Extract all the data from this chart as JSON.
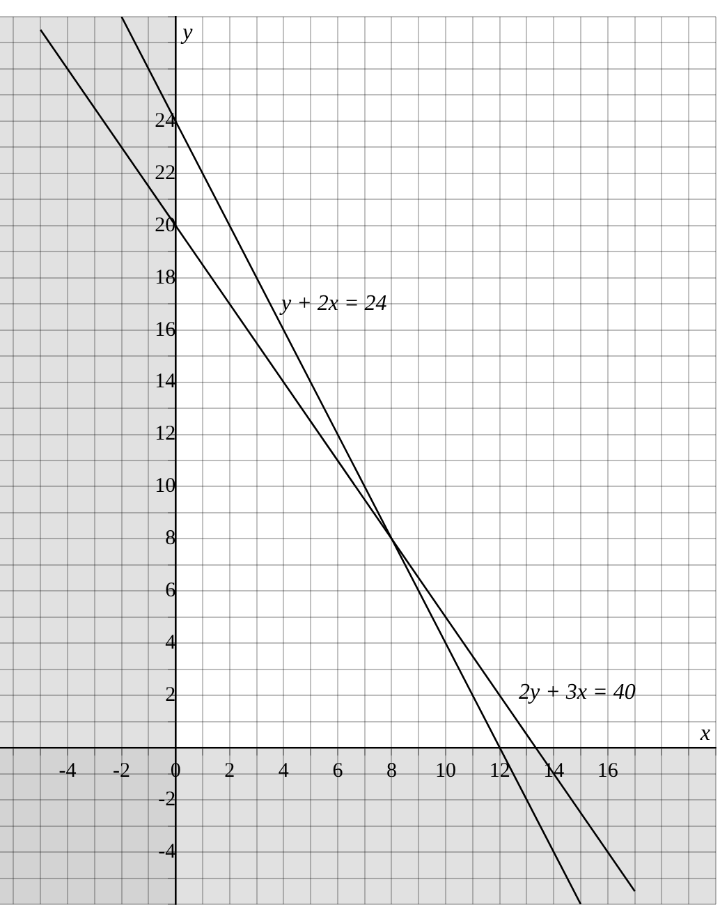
{
  "chart_data": {
    "type": "line",
    "xlabel": "x",
    "ylabel": "y",
    "series": [
      {
        "x": [
          -2,
          8,
          15
        ],
        "values": [
          28,
          8,
          -6
        ],
        "color": "#000000"
      },
      {
        "x": [
          -5,
          8,
          17
        ],
        "values": [
          27.5,
          8,
          -5.5
        ],
        "color": "#000000"
      }
    ],
    "xlim": [
      -6.5,
      20
    ],
    "ylim": [
      -6,
      28
    ],
    "xticks": [
      {
        "value": -6,
        "label": null
      },
      {
        "value": -5,
        "label": null
      },
      -4,
      {
        "value": -3,
        "label": null
      },
      -2,
      {
        "value": -1,
        "label": null
      },
      {
        "value": 0,
        "label": "0"
      },
      {
        "value": 1,
        "label": null
      },
      2,
      {
        "value": 3,
        "label": null
      },
      4,
      {
        "value": 5,
        "label": null
      },
      6,
      {
        "value": 7,
        "label": null
      },
      8,
      {
        "value": 9,
        "label": null
      },
      10,
      {
        "value": 11,
        "label": null
      },
      12,
      {
        "value": 13,
        "label": null
      },
      14,
      {
        "value": 15,
        "label": null
      },
      16,
      {
        "value": 17,
        "label": null
      },
      {
        "value": 18,
        "label": null
      },
      {
        "value": 19,
        "label": null
      },
      {
        "value": 20,
        "label": null
      }
    ],
    "yticks": [
      {
        "value": -6,
        "label": null
      },
      {
        "value": -5,
        "label": null
      },
      -4,
      {
        "value": -3,
        "label": null
      },
      -2,
      {
        "value": -1,
        "label": null
      },
      {
        "value": 0,
        "label": null
      },
      {
        "value": 1,
        "label": null
      },
      2,
      {
        "value": 3,
        "label": null
      },
      4,
      {
        "value": 5,
        "label": null
      },
      6,
      {
        "value": 7,
        "label": null
      },
      8,
      {
        "value": 9,
        "label": null
      },
      10,
      {
        "value": 11,
        "label": null
      },
      12,
      {
        "value": 13,
        "label": null
      },
      14,
      {
        "value": 15,
        "label": null
      },
      16,
      {
        "value": 17,
        "label": null
      },
      18,
      {
        "value": 19,
        "label": null
      },
      20,
      {
        "value": 21,
        "label": null
      },
      22,
      {
        "value": 23,
        "label": null
      },
      24,
      {
        "value": 25,
        "label": null
      },
      {
        "value": 26,
        "label": null
      },
      {
        "value": 27,
        "label": null
      },
      {
        "value": 28,
        "label": null
      }
    ],
    "bands": [
      {
        "axis": "x",
        "from": -6.5,
        "to": 0,
        "color": "#c8c8c8"
      },
      {
        "axis": "y",
        "from": -6,
        "to": 0,
        "color": "#c8c8c8"
      }
    ],
    "annotations": [
      "y + 2x = 24",
      "2y + 3x = 40"
    ],
    "grid": true,
    "legend": false,
    "marker": "none",
    "line_style": "solid"
  }
}
